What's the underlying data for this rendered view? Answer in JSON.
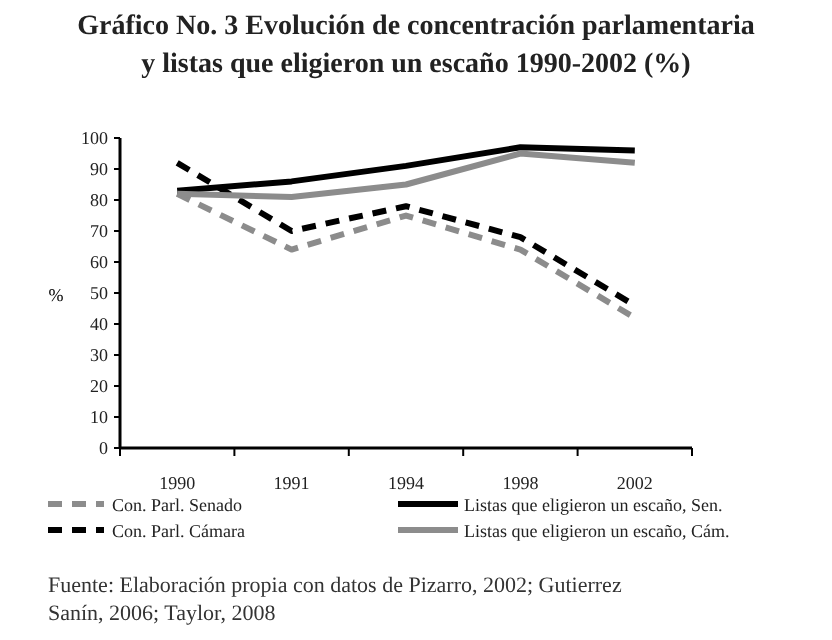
{
  "chart_data": {
    "type": "line",
    "title": "Gráfico No. 3  Evolución de concentración parlamentaria y listas que eligieron un escaño 1990-2002 (%)",
    "ylabel": "%",
    "categories": [
      "1990",
      "1991",
      "1994",
      "1998",
      "2002"
    ],
    "series": [
      {
        "name": "Con. Parl. Senado",
        "color": "#8c8c8c",
        "line_style": "dashed",
        "values": [
          82,
          64,
          75,
          64,
          42
        ]
      },
      {
        "name": "Con. Parl. Cámara",
        "color": "#000000",
        "line_style": "dashed",
        "values": [
          92,
          70,
          78,
          68,
          46
        ]
      },
      {
        "name": "Listas que eligieron un escaño, Sen.",
        "color": "#000000",
        "line_style": "solid",
        "values": [
          83,
          86,
          91,
          97,
          96
        ]
      },
      {
        "name": "Listas que eligieron un escaño, Cám.",
        "color": "#8c8c8c",
        "line_style": "solid",
        "values": [
          82,
          81,
          85,
          95,
          92
        ]
      }
    ],
    "ylim": [
      0,
      100
    ],
    "yticks": [
      0,
      10,
      20,
      30,
      40,
      50,
      60,
      70,
      80,
      90,
      100
    ],
    "grid": false,
    "legend": "bottom",
    "marker": "none",
    "annotations": [
      "Fuente: Elaboración propia con datos de Pizarro, 2002; Gutierrez Sanín, 2006; Taylor, 2008"
    ]
  }
}
